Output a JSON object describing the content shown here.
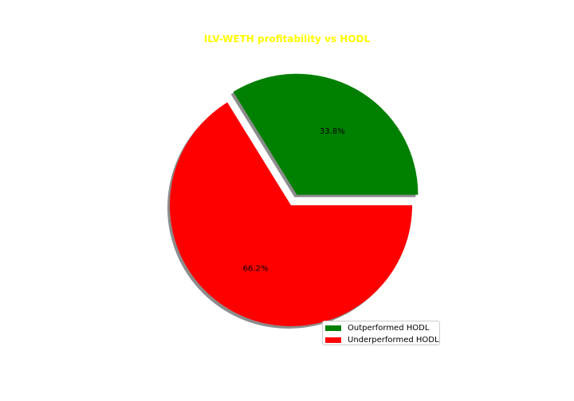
{
  "chart_data": {
    "type": "pie",
    "title": "ILV-WETH profitability vs HODL",
    "title_color": "#ffff00",
    "slices": [
      {
        "label": "Outperformed HODL",
        "value": 33.8,
        "pct_label": "33.8%",
        "color": "#008000",
        "exploded": true
      },
      {
        "label": "Underperformed HODL",
        "value": 66.2,
        "pct_label": "66.2%",
        "color": "#ff0000",
        "exploded": false
      }
    ],
    "start_angle_deg": 0,
    "direction": "counterclockwise",
    "shadow": true,
    "legend": {
      "placement": "lower-right"
    }
  }
}
